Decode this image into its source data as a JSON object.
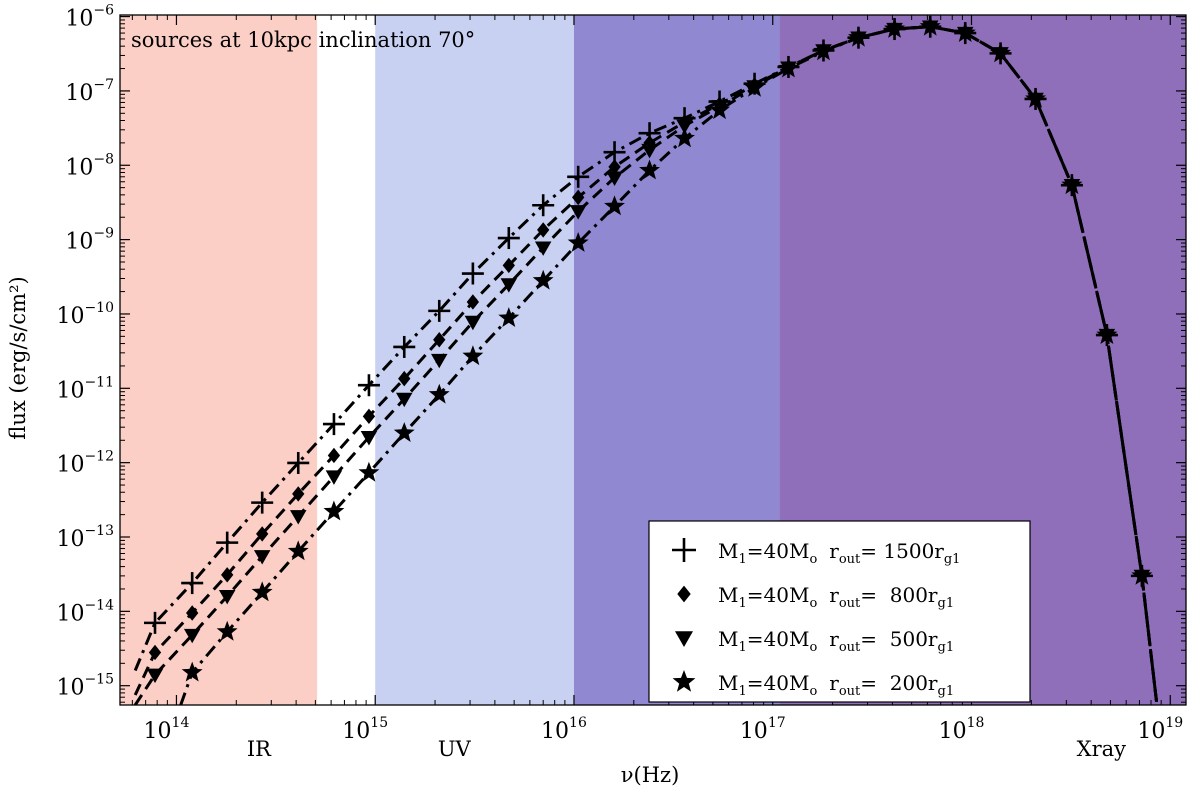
{
  "chart_data": {
    "type": "line",
    "title": "",
    "annotation": "sources at 10kpc inclination 70°",
    "xlabel": "ν(Hz)",
    "ylabel": "flux (erg/s/cm²)",
    "xscale": "log",
    "yscale": "log",
    "xlim": [
      52000000000000.0,
      1.2e+19
    ],
    "ylim": [
      5.5e-16,
      1.05e-06
    ],
    "x_ticks": [
      {
        "value": 100000000000000.0,
        "base": "10",
        "exp": "14"
      },
      {
        "value": 1000000000000000.0,
        "base": "10",
        "exp": "15"
      },
      {
        "value": 1e+16,
        "base": "10",
        "exp": "16"
      },
      {
        "value": 1e+17,
        "base": "10",
        "exp": "17"
      },
      {
        "value": 1e+18,
        "base": "10",
        "exp": "18"
      },
      {
        "value": 1e+19,
        "base": "10",
        "exp": "19"
      }
    ],
    "y_ticks": [
      {
        "value": 1e-15,
        "base": "10",
        "exp": "−15"
      },
      {
        "value": 1e-14,
        "base": "10",
        "exp": "−14"
      },
      {
        "value": 1e-13,
        "base": "10",
        "exp": "−13"
      },
      {
        "value": 1e-12,
        "base": "10",
        "exp": "−12"
      },
      {
        "value": 1e-11,
        "base": "10",
        "exp": "−11"
      },
      {
        "value": 1e-10,
        "base": "10",
        "exp": "−10"
      },
      {
        "value": 1e-09,
        "base": "10",
        "exp": "−9"
      },
      {
        "value": 1e-08,
        "base": "10",
        "exp": "−8"
      },
      {
        "value": 1e-07,
        "base": "10",
        "exp": "−7"
      },
      {
        "value": 1e-06,
        "base": "10",
        "exp": "−6"
      }
    ],
    "bands": [
      {
        "name": "IR",
        "from": 52000000000000.0,
        "to": 510000000000000.0,
        "color": "#f9b4a8",
        "opacity": 0.65
      },
      {
        "name": "UV",
        "from": 1000000000000000.0,
        "to": 1e+16,
        "color": "#c9d1f2",
        "opacity": 1.0
      },
      {
        "name": "",
        "from": 1e+16,
        "to": 1.08e+17,
        "color": "#9089d2",
        "opacity": 1.0
      },
      {
        "name": "Xray",
        "from": 1.08e+17,
        "to": 1.2e+19,
        "color": "#8f6eba",
        "opacity": 1.0
      }
    ],
    "band_labels": [
      {
        "text": "IR",
        "x": 260000000000000.0
      },
      {
        "text": "UV",
        "x": 2500000000000000.0
      },
      {
        "text": "Xray",
        "x": 4.5e+18
      }
    ],
    "series": [
      {
        "name": "M1=40Mo rout= 1500rg1",
        "mass_label": "M",
        "mass_sub": "1",
        "mass_rest": "=40M",
        "sun_sub": "o",
        "r_label": "r",
        "r_sub": "out",
        "r_value": "= 1500r",
        "rg_sub": "g1",
        "marker": "plus",
        "dash": "13,6,3,6",
        "x": [
          62000000000000.0,
          78000000000000.0,
          120000000000000.0,
          180000000000000.0,
          270000000000000.0,
          410000000000000.0,
          620000000000000.0,
          930000000000000.0,
          1400000000000000.0,
          2100000000000000.0,
          3100000000000000.0,
          4700000000000000.0,
          7000000000000000.0,
          1.05e+16,
          1.6e+16,
          2.4e+16,
          3.6e+16,
          5.4e+16,
          8.1e+16,
          1.2e+17,
          1.8e+17,
          2.7e+17,
          4.1e+17,
          6.2e+17,
          9.3e+17,
          1.4e+18,
          2.1e+18,
          3.2e+18,
          4.8e+18,
          7.2e+18,
          8.8e+18
        ],
        "y": [
          1.6e-15,
          7e-15,
          2.4e-14,
          8.4e-14,
          2.9e-13,
          9.9e-13,
          3.3e-12,
          1.1e-11,
          3.6e-11,
          1.1e-10,
          3.5e-10,
          1.05e-09,
          2.9e-09,
          7e-09,
          1.5e-08,
          2.7e-08,
          4.3e-08,
          7.2e-08,
          1.25e-07,
          2.1e-07,
          3.5e-07,
          5.2e-07,
          6.8e-07,
          7.3e-07,
          6e-07,
          3.2e-07,
          7.8e-08,
          5.4e-09,
          5.2e-11,
          3e-14,
          3e-16
        ],
        "marker_mask": [
          0,
          1,
          1,
          1,
          1,
          1,
          1,
          1,
          1,
          1,
          1,
          1,
          1,
          1,
          1,
          1,
          1,
          1,
          1,
          1,
          1,
          1,
          1,
          1,
          1,
          1,
          1,
          1,
          1,
          1,
          0
        ]
      },
      {
        "name": "M1=40Mo rout= 800rg1",
        "mass_label": "M",
        "mass_sub": "1",
        "mass_rest": "=40M",
        "sun_sub": "o",
        "r_label": "r",
        "r_sub": "out",
        "r_value": "=  800r",
        "rg_sub": "g1",
        "marker": "diamond",
        "dash": "12,7",
        "x": [
          62000000000000.0,
          78000000000000.0,
          120000000000000.0,
          180000000000000.0,
          270000000000000.0,
          410000000000000.0,
          620000000000000.0,
          930000000000000.0,
          1400000000000000.0,
          2100000000000000.0,
          3100000000000000.0,
          4700000000000000.0,
          7000000000000000.0,
          1.05e+16,
          1.6e+16,
          2.4e+16,
          3.6e+16,
          5.4e+16,
          8.1e+16,
          1.2e+17,
          1.8e+17,
          2.7e+17,
          4.1e+17,
          6.2e+17,
          9.3e+17,
          1.4e+18,
          2.1e+18,
          3.2e+18,
          4.8e+18,
          7.2e+18,
          8.8e+18
        ],
        "y": [
          7.5e-16,
          2.8e-15,
          9.5e-15,
          3.1e-14,
          1.1e-13,
          3.8e-13,
          1.25e-12,
          4.2e-12,
          1.35e-11,
          4.5e-11,
          1.45e-10,
          4.5e-10,
          1.35e-09,
          3.7e-09,
          9.5e-09,
          2e-08,
          3.8e-08,
          6.6e-08,
          1.2e-07,
          2.1e-07,
          3.5e-07,
          5.2e-07,
          6.8e-07,
          7.3e-07,
          6e-07,
          3.2e-07,
          7.8e-08,
          5.4e-09,
          5.2e-11,
          3e-14,
          3e-16
        ],
        "marker_mask": [
          0,
          1,
          1,
          1,
          1,
          1,
          1,
          1,
          1,
          1,
          1,
          1,
          1,
          1,
          1,
          1,
          1,
          1,
          1,
          1,
          1,
          1,
          1,
          1,
          1,
          1,
          1,
          1,
          1,
          1,
          0
        ]
      },
      {
        "name": "M1=40Mo rout= 500rg1",
        "mass_label": "M",
        "mass_sub": "1",
        "mass_rest": "=40M",
        "sun_sub": "o",
        "r_label": "r",
        "r_sub": "out",
        "r_value": "=  500r",
        "rg_sub": "g1",
        "marker": "triangle",
        "dash": "12,7",
        "x": [
          62000000000000.0,
          78000000000000.0,
          120000000000000.0,
          180000000000000.0,
          270000000000000.0,
          410000000000000.0,
          620000000000000.0,
          930000000000000.0,
          1400000000000000.0,
          2100000000000000.0,
          3100000000000000.0,
          4700000000000000.0,
          7000000000000000.0,
          1.05e+16,
          1.6e+16,
          2.4e+16,
          3.6e+16,
          5.4e+16,
          8.1e+16,
          1.2e+17,
          1.8e+17,
          2.7e+17,
          4.1e+17,
          6.2e+17,
          9.3e+17,
          1.4e+18,
          2.1e+18,
          3.2e+18,
          4.8e+18,
          7.2e+18,
          8.8e+18
        ],
        "y": [
          5.5e-16,
          1.4e-15,
          4.8e-15,
          1.6e-14,
          5.5e-14,
          1.9e-13,
          6.5e-13,
          2.2e-12,
          7.2e-12,
          2.4e-11,
          7.8e-11,
          2.5e-10,
          7.8e-10,
          2.4e-09,
          6.8e-09,
          1.6e-08,
          3.4e-08,
          6.2e-08,
          1.15e-07,
          2.05e-07,
          3.5e-07,
          5.2e-07,
          6.8e-07,
          7.3e-07,
          6e-07,
          3.2e-07,
          7.8e-08,
          5.4e-09,
          5.2e-11,
          3e-14,
          3e-16
        ],
        "marker_mask": [
          0,
          1,
          1,
          1,
          1,
          1,
          1,
          1,
          1,
          1,
          1,
          1,
          1,
          1,
          1,
          1,
          1,
          1,
          1,
          1,
          1,
          1,
          1,
          1,
          1,
          1,
          1,
          1,
          1,
          1,
          0
        ]
      },
      {
        "name": "M1=40Mo rout= 200rg1",
        "mass_label": "M",
        "mass_sub": "1",
        "mass_rest": "=40M",
        "sun_sub": "o",
        "r_label": "r",
        "r_sub": "out",
        "r_value": "=  200r",
        "rg_sub": "g1",
        "marker": "star",
        "dash": "13,6,3,6",
        "x": [
          105000000000000.0,
          120000000000000.0,
          180000000000000.0,
          270000000000000.0,
          410000000000000.0,
          620000000000000.0,
          930000000000000.0,
          1400000000000000.0,
          2100000000000000.0,
          3100000000000000.0,
          4700000000000000.0,
          7000000000000000.0,
          1.05e+16,
          1.6e+16,
          2.4e+16,
          3.6e+16,
          5.4e+16,
          8.1e+16,
          1.2e+17,
          1.8e+17,
          2.7e+17,
          4.1e+17,
          6.2e+17,
          9.3e+17,
          1.4e+18,
          2.1e+18,
          3.2e+18,
          4.8e+18,
          7.2e+18,
          8.8e+18
        ],
        "y": [
          5.5e-16,
          1.5e-15,
          5.3e-15,
          1.8e-14,
          6.4e-14,
          2.2e-13,
          7.3e-13,
          2.5e-12,
          8.2e-12,
          2.7e-11,
          8.8e-11,
          2.8e-10,
          9e-10,
          2.8e-09,
          8.5e-09,
          2.3e-08,
          5.5e-08,
          1.1e-07,
          2e-07,
          3.4e-07,
          5.2e-07,
          6.8e-07,
          7.3e-07,
          6e-07,
          3.2e-07,
          7.8e-08,
          5.4e-09,
          5.2e-11,
          3e-14,
          3e-16
        ],
        "marker_mask": [
          0,
          1,
          1,
          1,
          1,
          1,
          1,
          1,
          1,
          1,
          1,
          1,
          1,
          1,
          1,
          1,
          1,
          1,
          1,
          1,
          1,
          1,
          1,
          1,
          1,
          1,
          1,
          1,
          1,
          0
        ]
      }
    ],
    "legend_position": "bottom-right"
  }
}
